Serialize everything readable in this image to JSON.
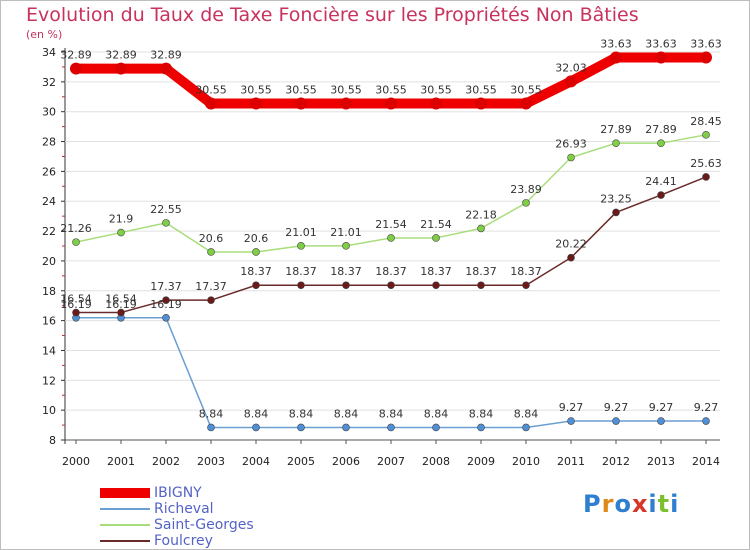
{
  "chart_data": {
    "type": "line",
    "title": "Evolution du Taux de Taxe Foncière sur les Propriétés Non Bâties",
    "unit_label": "(en %)",
    "xlabel": "",
    "ylabel": "(en %)",
    "ylim": [
      8,
      34
    ],
    "yticks": [
      8,
      10,
      12,
      14,
      16,
      18,
      20,
      22,
      24,
      26,
      28,
      30,
      32,
      34
    ],
    "categories": [
      "2000",
      "2001",
      "2002",
      "2003",
      "2004",
      "2005",
      "2006",
      "2007",
      "2008",
      "2009",
      "2010",
      "2011",
      "2012",
      "2013",
      "2014"
    ],
    "series": [
      {
        "name": "IBIGNY",
        "color": "#ee0000",
        "marker": "#dd0000",
        "width": "thick",
        "values": [
          32.89,
          32.89,
          32.89,
          30.55,
          30.55,
          30.55,
          30.55,
          30.55,
          30.55,
          30.55,
          30.55,
          32.03,
          33.63,
          33.63,
          33.63
        ],
        "labels": [
          "32.89",
          "32.89",
          "32.89",
          "30.55",
          "30.55",
          "30.55",
          "30.55",
          "30.55",
          "30.55",
          "30.55",
          "30.55",
          "32.03",
          "33.63",
          "33.63",
          "33.63"
        ]
      },
      {
        "name": "Richeval",
        "color": "#6a9fd4",
        "marker": "#4f8fd6",
        "width": "thin",
        "values": [
          16.19,
          16.19,
          16.19,
          8.84,
          8.84,
          8.84,
          8.84,
          8.84,
          8.84,
          8.84,
          8.84,
          9.27,
          9.27,
          9.27,
          9.27
        ],
        "labels": [
          "16.19",
          "16.19",
          "16.19",
          "8.84",
          "8.84",
          "8.84",
          "8.84",
          "8.84",
          "8.84",
          "8.84",
          "8.84",
          "9.27",
          "9.27",
          "9.27",
          "9.27"
        ]
      },
      {
        "name": "Saint-Georges",
        "color": "#a8dd7c",
        "marker": "#7fcf46",
        "width": "thin",
        "values": [
          21.26,
          21.9,
          22.55,
          20.6,
          20.6,
          21.01,
          21.01,
          21.54,
          21.54,
          22.18,
          23.89,
          26.93,
          27.89,
          27.89,
          28.45
        ],
        "labels": [
          "21.26",
          "21.9",
          "22.55",
          "20.6",
          "20.6",
          "21.01",
          "21.01",
          "21.54",
          "21.54",
          "22.18",
          "23.89",
          "26.93",
          "27.89",
          "27.89",
          "28.45"
        ]
      },
      {
        "name": "Foulcrey",
        "color": "#6b2a2a",
        "marker": "#6b1a1a",
        "width": "thin",
        "values": [
          16.54,
          16.54,
          17.37,
          17.37,
          18.37,
          18.37,
          18.37,
          18.37,
          18.37,
          18.37,
          18.37,
          20.22,
          23.25,
          24.41,
          25.63
        ],
        "labels": [
          "16.54",
          "16.54",
          "17.37",
          "17.37",
          "18.37",
          "18.37",
          "18.37",
          "18.37",
          "18.37",
          "18.37",
          "18.37",
          "20.22",
          "23.25",
          "24.41",
          "25.63"
        ]
      }
    ]
  },
  "logo": {
    "text": "Proxiti"
  }
}
